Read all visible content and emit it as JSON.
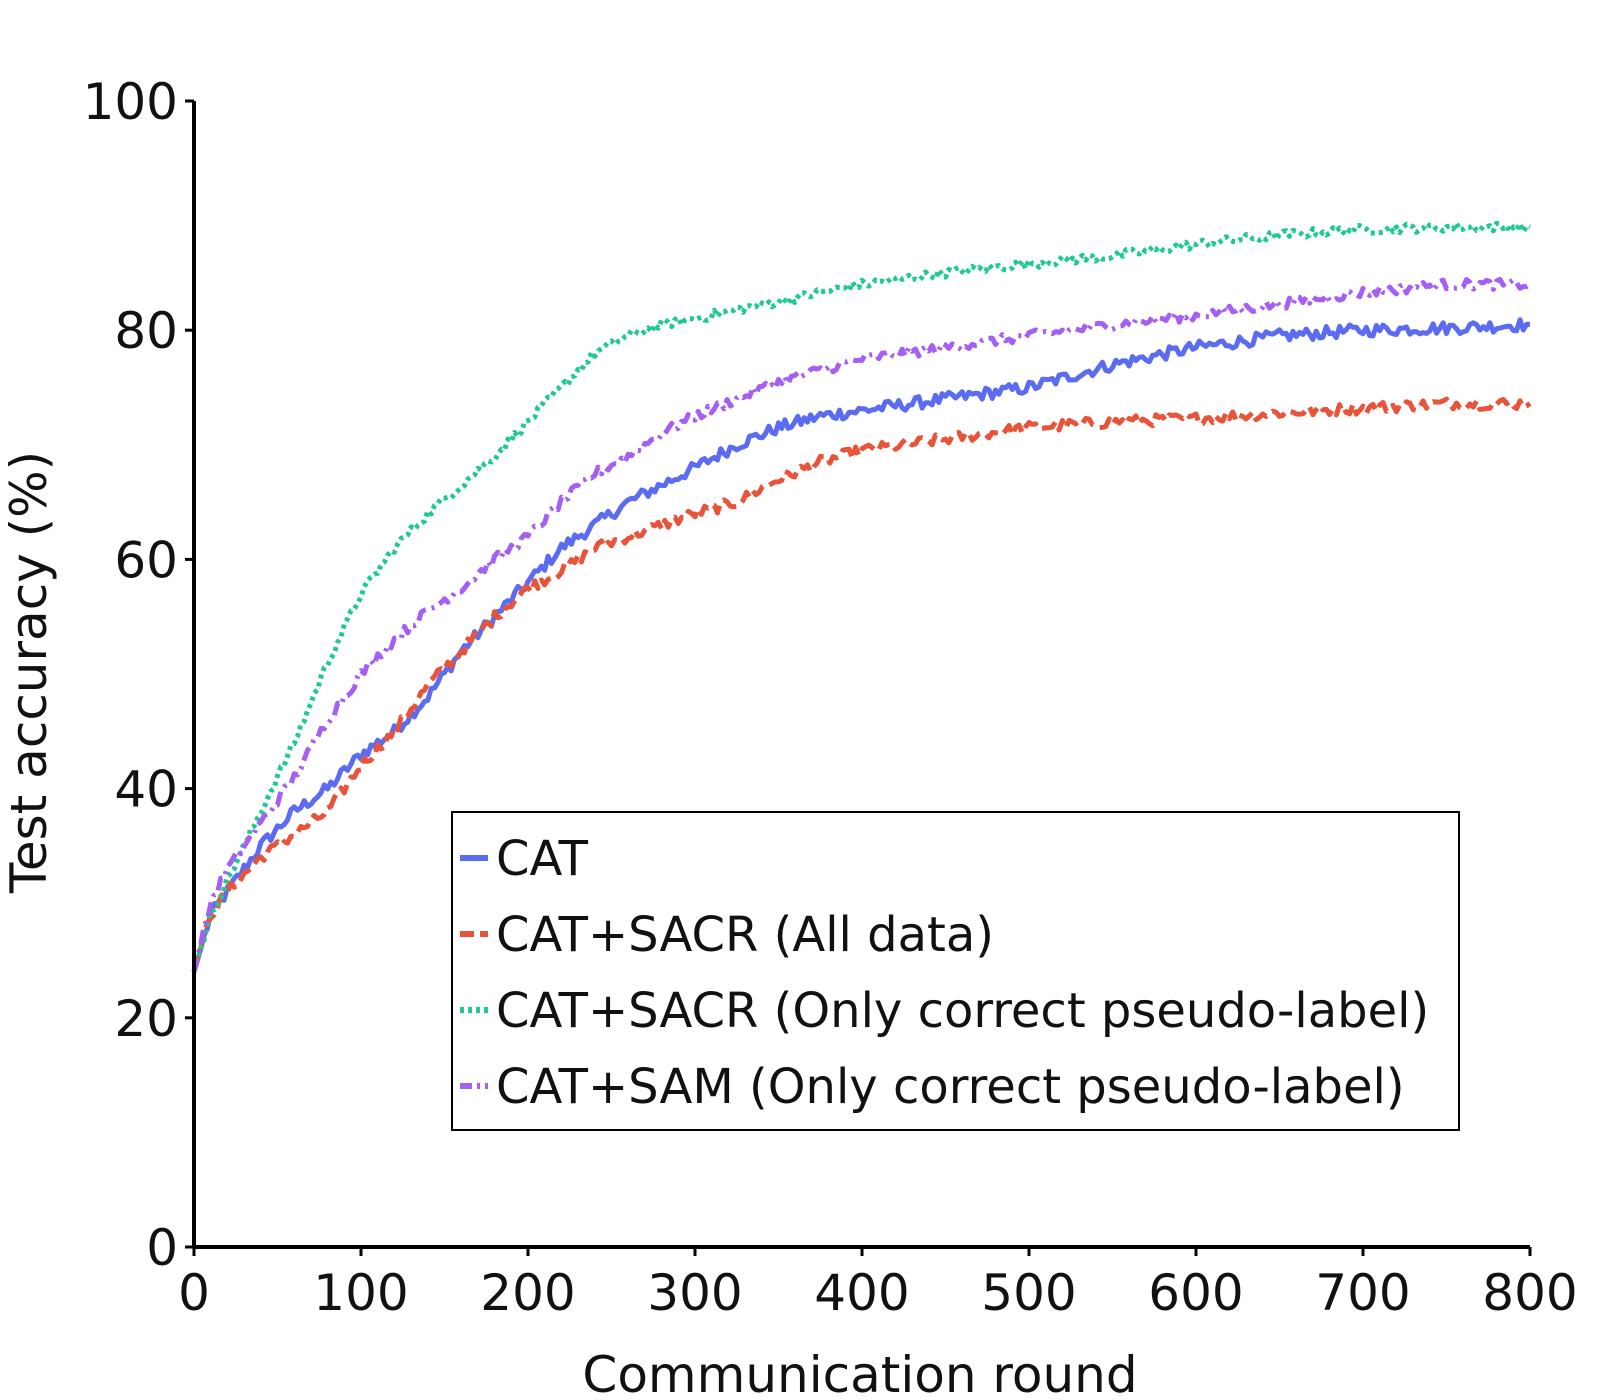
{
  "chart_data": {
    "type": "line",
    "title": "",
    "xlabel": "Communication round",
    "ylabel": "Test accuracy (%)",
    "xlim": [
      0,
      800
    ],
    "ylim": [
      0,
      100
    ],
    "xticks": [
      "0",
      "100",
      "200",
      "300",
      "400",
      "500",
      "600",
      "700",
      "800"
    ],
    "yticks": [
      "0",
      "20",
      "40",
      "60",
      "80",
      "100"
    ],
    "grid": false,
    "legend_position": "bottom-right",
    "x": [
      0,
      10,
      20,
      40,
      60,
      80,
      100,
      120,
      140,
      160,
      180,
      200,
      220,
      240,
      260,
      280,
      300,
      325,
      350,
      375,
      400,
      450,
      500,
      550,
      600,
      650,
      700,
      750,
      800
    ],
    "series": [
      {
        "name": "CAT",
        "color": "#5b6cf2",
        "dash": "solid",
        "values": [
          24,
          29,
          31,
          35,
          38,
          40,
          43,
          45,
          48,
          52,
          55,
          58,
          61,
          63,
          65,
          66.5,
          68,
          70,
          71.5,
          72.5,
          73,
          74,
          75,
          77,
          78.5,
          79.5,
          80,
          80.2,
          80.5
        ]
      },
      {
        "name": "CAT+SACR (All data)",
        "color": "#e8533a",
        "dash": "dashed",
        "values": [
          24,
          29,
          31,
          34,
          36,
          38,
          42,
          45,
          49,
          52,
          55,
          57.5,
          59,
          61,
          62,
          63,
          64,
          65,
          67,
          68.5,
          69.5,
          70.5,
          71.5,
          72,
          72.3,
          72.8,
          73.2,
          73.6,
          73.6
        ]
      },
      {
        "name": "CAT+SACR (Only correct pseudo-label)",
        "color": "#1fc994",
        "dash": "dotted",
        "values": [
          24,
          29,
          32,
          38,
          44,
          51,
          57,
          61,
          64,
          66.5,
          69,
          72,
          75,
          78,
          79.5,
          80.5,
          81,
          81.8,
          82.5,
          83.3,
          84,
          85,
          85.8,
          86.5,
          87.5,
          88.3,
          88.8,
          89,
          89
        ]
      },
      {
        "name": "CAT+SAM (Only correct pseudo-label)",
        "color": "#a55ff2",
        "dash": "dashdot",
        "values": [
          24,
          30,
          33,
          37,
          41,
          46,
          50,
          53,
          55.5,
          57.5,
          60,
          62,
          65,
          67.5,
          69,
          71,
          72.5,
          74,
          75.5,
          76.5,
          77.5,
          78.5,
          79.5,
          80.5,
          81.3,
          82.3,
          83.3,
          84,
          84
        ]
      }
    ]
  }
}
